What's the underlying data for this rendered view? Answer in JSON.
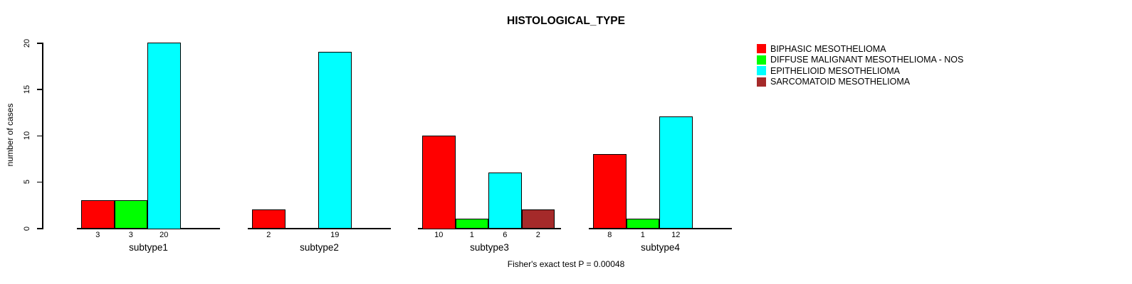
{
  "chart_data": {
    "type": "bar",
    "title": "HISTOLOGICAL_TYPE",
    "xlabel": "",
    "ylabel": "number of cases",
    "ylim": [
      0,
      20
    ],
    "yticks": [
      0,
      5,
      10,
      15,
      20
    ],
    "grid": false,
    "legend_position": "top-right",
    "bar_value_labels": true,
    "categories": [
      "subtype1",
      "subtype2",
      "subtype3",
      "subtype4"
    ],
    "series": [
      {
        "name": "BIPHASIC MESOTHELIOMA",
        "color": "#FF0000",
        "values": [
          3,
          2,
          10,
          8
        ]
      },
      {
        "name": "DIFFUSE MALIGNANT MESOTHELIOMA - NOS",
        "color": "#00FF00",
        "values": [
          3,
          0,
          1,
          1
        ]
      },
      {
        "name": "EPITHELIOID MESOTHELIOMA",
        "color": "#00FFFF",
        "values": [
          20,
          19,
          6,
          12
        ]
      },
      {
        "name": "SARCOMATOID MESOTHELIOMA",
        "color": "#A52A2A",
        "values": [
          0,
          0,
          2,
          0
        ]
      }
    ],
    "annotation": "Fisher's exact test P = 0.00048"
  },
  "colors": {
    "background": "#FFFFFF",
    "axis": "#000000",
    "text": "#000000"
  }
}
